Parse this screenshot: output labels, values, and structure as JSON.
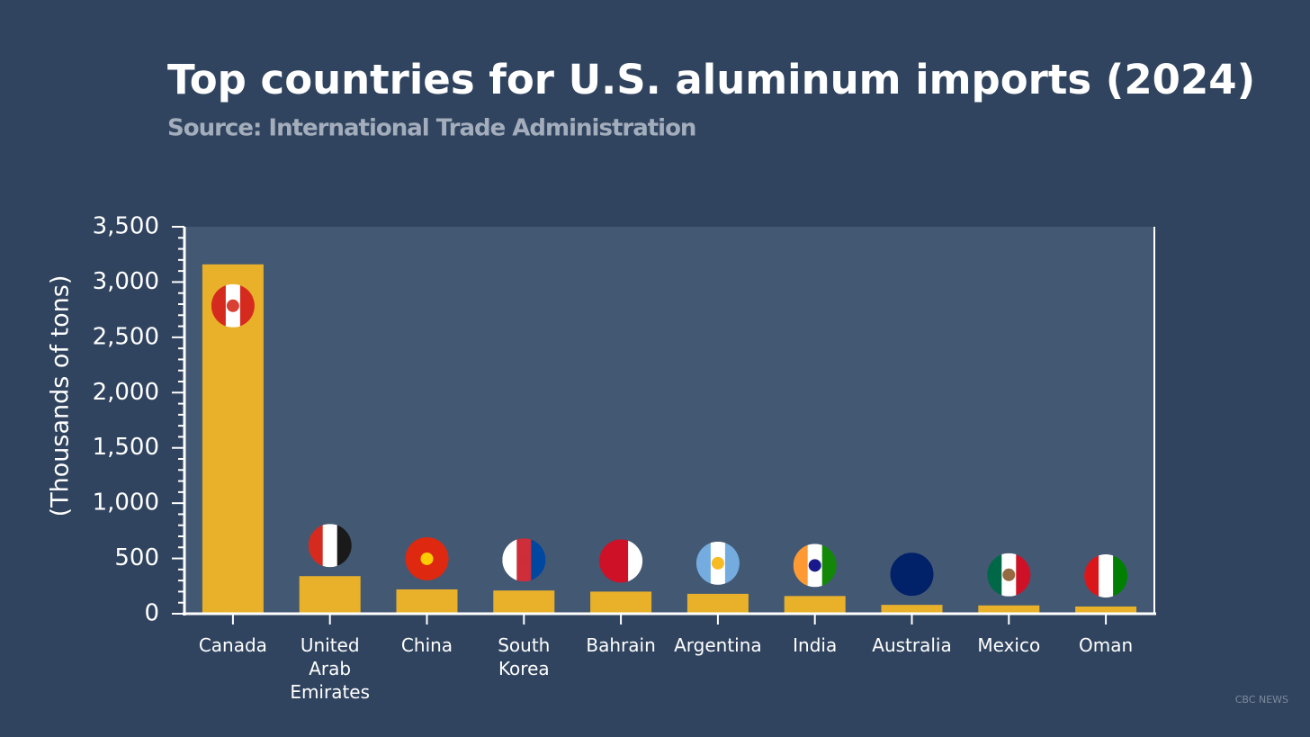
{
  "chart_data": {
    "type": "bar",
    "title": "Top countries for U.S. aluminum imports (2024)",
    "subtitle": "Source: International Trade Administration",
    "y_label": "(Thousands of tons)",
    "watermark": "CBC NEWS",
    "categories": [
      "Canada",
      "United Arab Emirates",
      "China",
      "South Korea",
      "Bahrain",
      "Argentina",
      "India",
      "Australia",
      "Mexico",
      "Oman"
    ],
    "values": [
      3160,
      340,
      220,
      210,
      200,
      180,
      160,
      80,
      75,
      65
    ],
    "color": "#e9b12a",
    "ylim": [
      0,
      3500
    ],
    "yticks": [
      0,
      500,
      {
        "value": 1000,
        "label": "1,000"
      },
      {
        "value": 1500,
        "label": "1,500"
      },
      {
        "value": 2000,
        "label": "2,000"
      },
      {
        "value": 2500,
        "label": "2,500"
      },
      {
        "value": 3000,
        "label": "3,000"
      },
      {
        "value": 3500,
        "label": "3,500"
      }
    ],
    "grid": false
  }
}
